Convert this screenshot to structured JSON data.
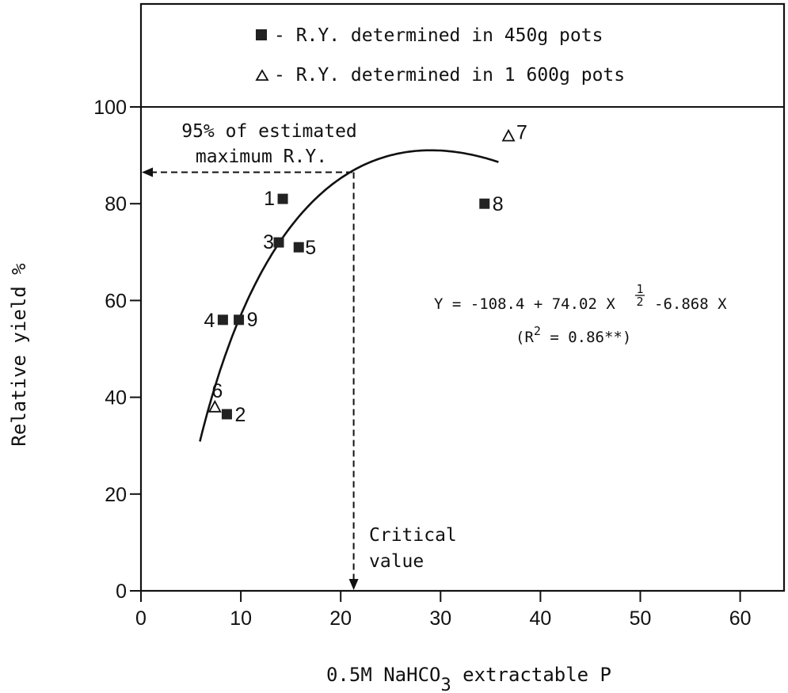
{
  "chart_data": {
    "type": "scatter",
    "xlabel": {
      "prefix": "0.5M NaHCO",
      "sub": "3",
      "suffix": " extractable P"
    },
    "ylabel": "Relative yield %",
    "xlim": [
      0,
      65
    ],
    "ylim": [
      0,
      100
    ],
    "x_ticks": [
      "0",
      "10",
      "20",
      "30",
      "40",
      "50",
      "60"
    ],
    "y_ticks": [
      "0",
      "20",
      "40",
      "60",
      "80",
      "100"
    ],
    "x_tick_values": [
      0,
      10,
      20,
      30,
      40,
      50,
      60
    ],
    "y_tick_values": [
      0,
      20,
      40,
      60,
      80,
      100
    ],
    "legend": [
      {
        "marker": "square",
        "label": "- R.Y. determined in 450g pots"
      },
      {
        "marker": "triangle",
        "label": "- R.Y. determined in 1 600g pots"
      }
    ],
    "points": [
      {
        "id": "1",
        "x": 14.2,
        "y": 81,
        "marker": "square"
      },
      {
        "id": "2",
        "x": 8.6,
        "y": 36.5,
        "marker": "square"
      },
      {
        "id": "3",
        "x": 13.8,
        "y": 72,
        "marker": "square"
      },
      {
        "id": "4",
        "x": 8.2,
        "y": 56,
        "marker": "square"
      },
      {
        "id": "5",
        "x": 15.8,
        "y": 71,
        "marker": "square"
      },
      {
        "id": "6",
        "x": 7.4,
        "y": 38,
        "marker": "triangle"
      },
      {
        "id": "7",
        "x": 36.8,
        "y": 94,
        "marker": "triangle"
      },
      {
        "id": "8",
        "x": 34.4,
        "y": 80,
        "marker": "square"
      },
      {
        "id": "9",
        "x": 9.8,
        "y": 56,
        "marker": "square"
      }
    ],
    "curve": {
      "equation": "Y = -108.4 + 74.02 X^0.5 - 6.868 X",
      "intercept": -108.4,
      "coef_sqrt": 74.02,
      "coef_linear": -6.868,
      "x_range": [
        5.9,
        35.8
      ]
    },
    "annotations": {
      "equation_line": {
        "left": "Y = -108.4 + 74.02 X",
        "exp_num": "1",
        "exp_den": "2",
        "right": "-6.868 X"
      },
      "r2_line": {
        "open": "(R",
        "sup": "2",
        "close": " = 0.86**)"
      },
      "max_label_line1": "95% of estimated",
      "max_label_line2": "maximum R.Y.",
      "critical_line1": "Critical",
      "critical_line2": "value",
      "critical_x": 21.3,
      "critical_y": 86.5
    }
  }
}
